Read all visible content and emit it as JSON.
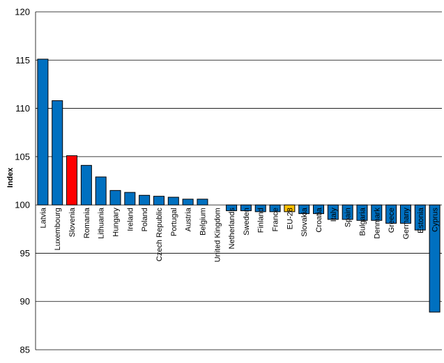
{
  "chart_data": {
    "type": "bar",
    "title": "",
    "xlabel": "",
    "ylabel": "Index",
    "ylim": [
      85,
      120
    ],
    "yticks": [
      85,
      90,
      95,
      100,
      105,
      110,
      115,
      120
    ],
    "baseline": 100,
    "grid": true,
    "categories": [
      "Latvia",
      "Luxembourg",
      "Slovenia",
      "Romania",
      "Lithuania",
      "Hungary",
      "Ireland",
      "Poland",
      "Czech Republic",
      "Portugal",
      "Austria",
      "Belgium",
      "United Kingdom",
      "Netherlands",
      "Sweden",
      "Finland",
      "France",
      "EU-28",
      "Slovakia",
      "Croatia",
      "Italy",
      "Spain",
      "Bulgaria",
      "Denmark",
      "Greece",
      "Germany",
      "Estonia",
      "Cyprus"
    ],
    "values": [
      115.1,
      110.8,
      105.1,
      104.1,
      102.9,
      101.5,
      101.3,
      101.0,
      100.9,
      100.8,
      100.6,
      100.6,
      100.0,
      99.4,
      99.4,
      99.3,
      99.3,
      99.3,
      99.1,
      99.1,
      98.5,
      98.5,
      98.4,
      98.4,
      98.1,
      98.1,
      97.4,
      88.9
    ],
    "colors": {
      "default": "#0070C0",
      "Slovenia": "#FF0000",
      "EU-28": "#FFC000"
    }
  }
}
